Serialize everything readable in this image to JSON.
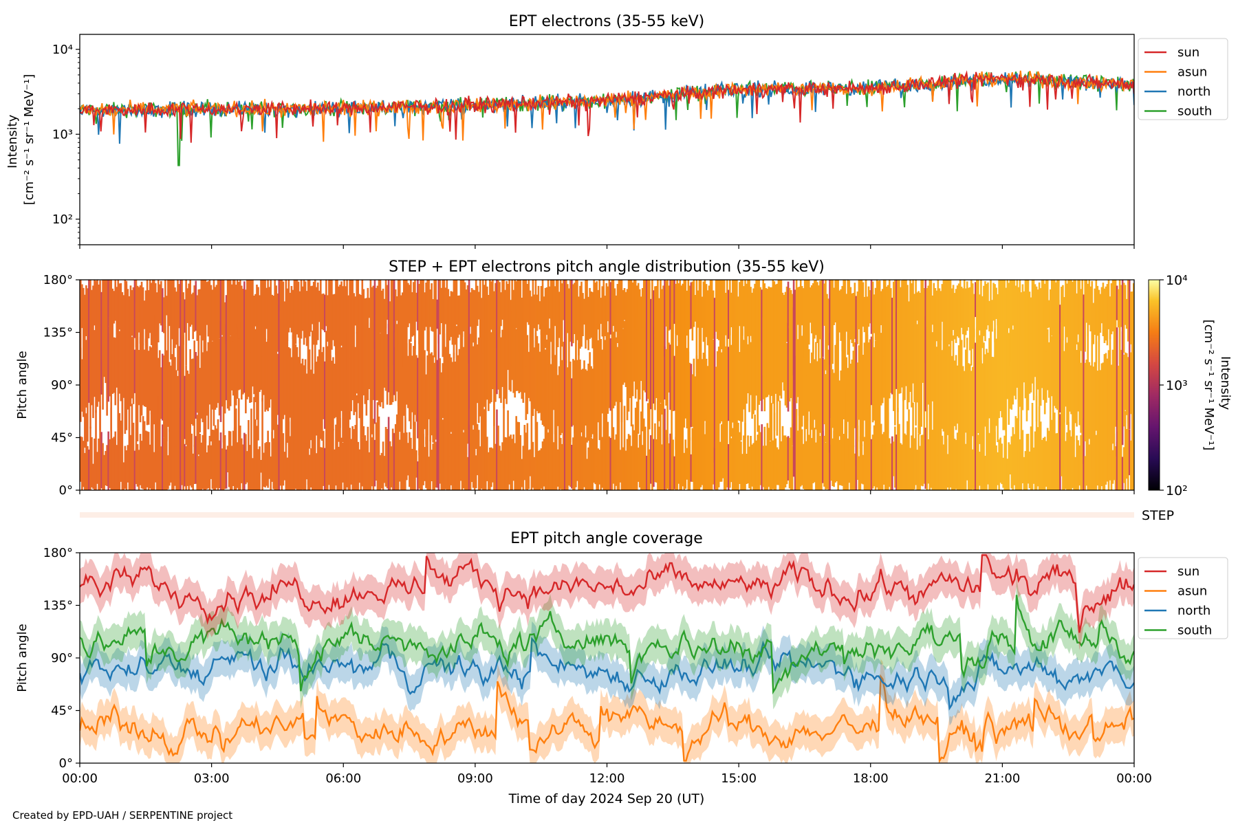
{
  "footer": "Created by EPD-UAH / SERPENTINE project",
  "colors": {
    "sun": "#d62728",
    "asun": "#ff7f0e",
    "north": "#1f77b4",
    "south": "#2ca02c",
    "step_bar": "#fdeee6"
  },
  "chart_data": [
    {
      "type": "line",
      "title": "EPT electrons (35-55 keV)",
      "ylabel_line1": "Intensity",
      "ylabel_line2": "[cm⁻² s⁻¹ sr⁻¹ MeV⁻¹]",
      "y_scale": "log",
      "ylim": [
        50,
        15000
      ],
      "y_ticks": [
        100,
        1000,
        10000
      ],
      "y_tick_labels": [
        "10²",
        "10³",
        "10⁴"
      ],
      "x_range": [
        "2024-09-20 00:00",
        "2024-09-21 00:00"
      ],
      "legend_position": "outside-right",
      "approx_hourly_level": {
        "hours": [
          0,
          3,
          6,
          9,
          12,
          15,
          18,
          21,
          24
        ],
        "values": [
          1900,
          2000,
          2000,
          2200,
          2500,
          3400,
          3500,
          4600,
          3800
        ]
      },
      "series": [
        {
          "name": "sun",
          "color_key": "sun"
        },
        {
          "name": "asun",
          "color_key": "asun"
        },
        {
          "name": "north",
          "color_key": "north"
        },
        {
          "name": "south",
          "color_key": "south"
        }
      ]
    },
    {
      "type": "heatmap",
      "title": "STEP + EPT electrons pitch angle distribution (35-55 keV)",
      "ylabel": "Pitch angle",
      "ylim": [
        0,
        180
      ],
      "y_ticks": [
        0,
        45,
        90,
        135,
        180
      ],
      "y_tick_labels": [
        "0°",
        "45°",
        "90°",
        "135°",
        "180°"
      ],
      "colorbar": {
        "scale": "log",
        "range": [
          100,
          10000
        ],
        "tick_labels": [
          "10²",
          "10³",
          "10⁴"
        ],
        "label_line1": "Intensity",
        "label_line2": "[cm⁻² s⁻¹ sr⁻¹ MeV⁻¹]",
        "colormap": "inferno"
      }
    },
    {
      "type": "bar",
      "label": "STEP"
    },
    {
      "type": "line",
      "title": "EPT pitch angle coverage",
      "ylabel": "Pitch angle",
      "ylim": [
        0,
        180
      ],
      "y_ticks": [
        0,
        45,
        90,
        135,
        180
      ],
      "y_tick_labels": [
        "0°",
        "45°",
        "90°",
        "135°",
        "180°"
      ],
      "xlabel": "Time of day 2024 Sep 20 (UT)",
      "x_ticks": [
        0,
        3,
        6,
        9,
        12,
        15,
        18,
        21,
        24
      ],
      "x_tick_labels": [
        "00:00",
        "03:00",
        "06:00",
        "09:00",
        "12:00",
        "15:00",
        "18:00",
        "21:00",
        "00:00"
      ],
      "legend_position": "outside-right",
      "series": [
        {
          "name": "sun",
          "color_key": "sun",
          "approx_mean_deg": 150
        },
        {
          "name": "asun",
          "color_key": "asun",
          "approx_mean_deg": 30
        },
        {
          "name": "north",
          "color_key": "north",
          "approx_mean_deg": 80
        },
        {
          "name": "south",
          "color_key": "south",
          "approx_mean_deg": 105
        }
      ]
    }
  ]
}
